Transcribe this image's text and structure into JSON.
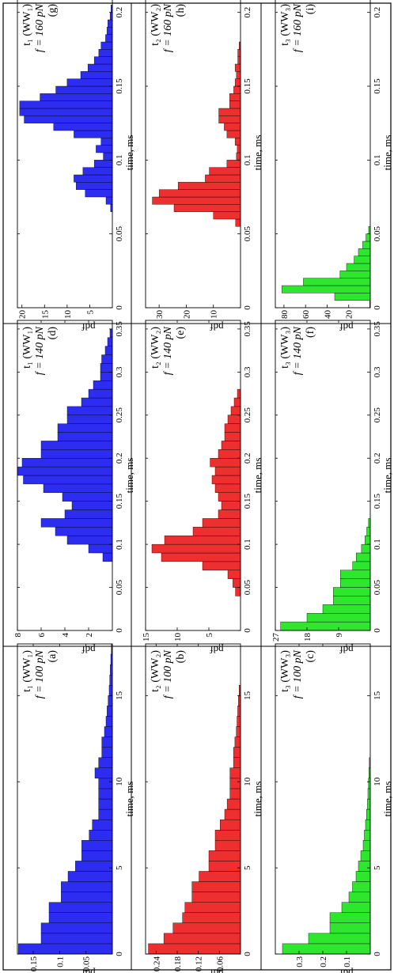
{
  "colors": {
    "WW1": "#2d2df2",
    "WW2": "#ee2f2f",
    "WW3": "#2fe62f",
    "frame": "#000000",
    "background": "#ffffff"
  },
  "chart_data": [
    {
      "type": "bar",
      "panel": "(a)",
      "title_line1": "t₁ (WW₁)",
      "title_line2": "f = 100 pN",
      "xlabel": "time, ms",
      "ylabel": "pdf",
      "xlim": [
        0,
        18
      ],
      "ylim": [
        0,
        0.18
      ],
      "xticks": [
        "0",
        "5",
        "10",
        "15"
      ],
      "yticks": [
        "0.05",
        "0.1",
        "0.15"
      ],
      "bin_width": 0.6,
      "x": [
        0.3,
        0.9,
        1.5,
        2.1,
        2.7,
        3.3,
        3.9,
        4.5,
        5.1,
        5.7,
        6.3,
        6.9,
        7.5,
        8.1,
        8.7,
        9.3,
        9.9,
        10.5,
        11.1,
        11.7,
        12.3,
        12.9,
        13.5,
        14.1,
        14.7,
        15.3,
        15.9,
        16.5,
        17.1,
        17.7
      ],
      "values": [
        0.178,
        0.135,
        0.135,
        0.12,
        0.12,
        0.097,
        0.097,
        0.084,
        0.07,
        0.058,
        0.058,
        0.044,
        0.038,
        0.026,
        0.026,
        0.026,
        0.026,
        0.033,
        0.026,
        0.02,
        0.02,
        0.015,
        0.012,
        0.01,
        0.008,
        0.006,
        0.005,
        0.004,
        0.003,
        0.002
      ]
    },
    {
      "type": "bar",
      "panel": "(b)",
      "title_line1": "t₂ (WW₂)",
      "title_line2": "f = 100 pN",
      "xlabel": "time, ms",
      "ylabel": "pdf",
      "xlim": [
        0,
        18
      ],
      "ylim": [
        0,
        0.27
      ],
      "xticks": [
        "0",
        "5",
        "10",
        "15"
      ],
      "yticks": [
        "0.06",
        "0.12",
        "0.18",
        "0.24"
      ],
      "bin_width": 0.6,
      "x": [
        0.3,
        0.9,
        1.5,
        2.1,
        2.7,
        3.3,
        3.9,
        4.5,
        5.1,
        5.7,
        6.3,
        6.9,
        7.5,
        8.1,
        8.7,
        9.3,
        9.9,
        10.5,
        11.1,
        11.7,
        12.3,
        12.9,
        13.5,
        14.1,
        14.7,
        15.3
      ],
      "values": [
        0.262,
        0.218,
        0.192,
        0.165,
        0.158,
        0.138,
        0.138,
        0.118,
        0.09,
        0.09,
        0.072,
        0.072,
        0.058,
        0.045,
        0.038,
        0.03,
        0.03,
        0.03,
        0.02,
        0.02,
        0.016,
        0.012,
        0.01,
        0.008,
        0.006,
        0.004
      ]
    },
    {
      "type": "bar",
      "panel": "(c)",
      "title_line1": "t₃ (WW₃)",
      "title_line2": "f = 100 pN",
      "xlabel": "time, ms",
      "ylabel": "pdf",
      "xlim": [
        0,
        18
      ],
      "ylim": [
        0,
        0.4
      ],
      "xticks": [
        "0",
        "5",
        "10",
        "15"
      ],
      "yticks": [
        "0.1",
        "0.2",
        "0.3"
      ],
      "bin_width": 0.6,
      "x": [
        0.3,
        0.9,
        1.5,
        2.1,
        2.7,
        3.3,
        3.9,
        4.5,
        5.1,
        5.7,
        6.3,
        6.9,
        7.5,
        8.1,
        8.7,
        9.3,
        9.9,
        10.5,
        11.1
      ],
      "values": [
        0.37,
        0.26,
        0.17,
        0.17,
        0.12,
        0.09,
        0.075,
        0.06,
        0.05,
        0.04,
        0.03,
        0.025,
        0.02,
        0.016,
        0.012,
        0.01,
        0.008,
        0.006,
        0.004
      ]
    },
    {
      "type": "bar",
      "panel": "(d)",
      "title_line1": "t₁ (WW₁)",
      "title_line2": "f = 140 pN",
      "xlabel": "time, ms",
      "ylabel": "pdf",
      "xlim": [
        0,
        0.36
      ],
      "ylim": [
        0,
        8
      ],
      "xticks": [
        "0",
        "0.05",
        "0.1",
        "0.15",
        "0.2",
        "0.25",
        "0.3",
        "0.35"
      ],
      "yticks": [
        "2",
        "4",
        "6",
        "8"
      ],
      "bin_width": 0.01,
      "x": [
        0.085,
        0.095,
        0.105,
        0.115,
        0.125,
        0.135,
        0.145,
        0.155,
        0.165,
        0.175,
        0.185,
        0.195,
        0.205,
        0.215,
        0.225,
        0.235,
        0.245,
        0.255,
        0.265,
        0.275,
        0.285,
        0.295,
        0.305,
        0.315,
        0.325,
        0.335,
        0.345
      ],
      "values": [
        0.8,
        2.0,
        3.8,
        4.8,
        6.0,
        4.0,
        3.4,
        4.2,
        5.8,
        7.5,
        8.0,
        7.6,
        6.0,
        6.0,
        4.6,
        4.6,
        3.8,
        3.8,
        2.6,
        2.0,
        1.6,
        1.0,
        1.0,
        0.9,
        0.6,
        0.4,
        0.2
      ]
    },
    {
      "type": "bar",
      "panel": "(e)",
      "title_line1": "t₂ (WW₂)",
      "title_line2": "f = 140 pN",
      "xlabel": "time, ms",
      "ylabel": "pdf",
      "xlim": [
        0,
        0.36
      ],
      "ylim": [
        0,
        15
      ],
      "xticks": [
        "0",
        "0.05",
        "0.1",
        "0.15",
        "0.2",
        "0.25",
        "0.3",
        "0.35"
      ],
      "yticks": [
        "5",
        "10",
        "15"
      ],
      "bin_width": 0.01,
      "x": [
        0.045,
        0.055,
        0.065,
        0.075,
        0.085,
        0.095,
        0.105,
        0.115,
        0.125,
        0.135,
        0.145,
        0.155,
        0.165,
        0.175,
        0.185,
        0.195,
        0.205,
        0.215,
        0.225,
        0.235,
        0.245,
        0.255,
        0.265,
        0.275
      ],
      "values": [
        0.8,
        1.2,
        2.0,
        6.0,
        12.5,
        14.0,
        12.0,
        7.5,
        6.0,
        3.5,
        3.0,
        3.5,
        4.0,
        4.5,
        4.0,
        4.8,
        3.5,
        3.0,
        2.5,
        2.5,
        2.0,
        1.5,
        1.0,
        0.5
      ]
    },
    {
      "type": "bar",
      "panel": "(f)",
      "title_line1": "t₃ (WW₃)",
      "title_line2": "f = 140 pN",
      "xlabel": "time, ms",
      "ylabel": "pdf",
      "xlim": [
        0,
        0.36
      ],
      "ylim": [
        0,
        27
      ],
      "xticks": [
        "0",
        "0.05",
        "0.1",
        "0.15",
        "0.2",
        "0.25",
        "0.3",
        "0.35"
      ],
      "yticks": [
        "9",
        "18",
        "27"
      ],
      "bin_width": 0.01,
      "x": [
        0.005,
        0.015,
        0.025,
        0.035,
        0.045,
        0.055,
        0.065,
        0.075,
        0.085,
        0.095,
        0.105,
        0.115,
        0.125
      ],
      "values": [
        25.5,
        18.0,
        13.5,
        10.5,
        10.5,
        8.5,
        8.5,
        5.0,
        4.0,
        2.5,
        1.5,
        1.0,
        0.5
      ]
    },
    {
      "type": "bar",
      "panel": "(g)",
      "title_line1": "t₁ (WW₁)",
      "title_line2": "f = 160 pN",
      "xlabel": "time, ms",
      "ylabel": "pdf",
      "xlim": [
        0,
        0.21
      ],
      "ylim": [
        0,
        21
      ],
      "xticks": [
        "0",
        "0.05",
        "0.1",
        "0.15",
        "0.2"
      ],
      "yticks": [
        "5",
        "10",
        "15",
        "20"
      ],
      "bin_width": 0.005,
      "x": [
        0.0675,
        0.0725,
        0.0775,
        0.0825,
        0.0875,
        0.0925,
        0.0975,
        0.1025,
        0.1075,
        0.1125,
        0.1175,
        0.1225,
        0.1275,
        0.1325,
        0.1375,
        0.1425,
        0.1475,
        0.1525,
        0.1575,
        0.1625,
        0.1675,
        0.1725,
        0.1775,
        0.1825,
        0.1875,
        0.1925,
        0.1975,
        0.2025
      ],
      "values": [
        0.4,
        1.4,
        6.0,
        8.0,
        8.5,
        6.5,
        4.0,
        2.0,
        3.6,
        2.5,
        8.5,
        13.0,
        19.5,
        20.5,
        20.5,
        16.0,
        12.5,
        10.0,
        7.0,
        5.4,
        4.0,
        3.0,
        2.5,
        1.5,
        1.2,
        1.0,
        0.5,
        0.3
      ]
    },
    {
      "type": "bar",
      "panel": "(h)",
      "title_line1": "t₂ (WW₂)",
      "title_line2": "f = 160 pN",
      "xlabel": "time, ms",
      "ylabel": "pdf",
      "xlim": [
        0,
        0.21
      ],
      "ylim": [
        0,
        35
      ],
      "xticks": [
        "0",
        "0.05",
        "0.1",
        "0.15",
        "0.2"
      ],
      "yticks": [
        "10",
        "20",
        "30"
      ],
      "bin_width": 0.005,
      "x": [
        0.0575,
        0.0625,
        0.0675,
        0.0725,
        0.0775,
        0.0825,
        0.0875,
        0.0925,
        0.0975,
        0.1025,
        0.1075,
        0.1125,
        0.1175,
        0.1225,
        0.1275,
        0.1325,
        0.1375,
        0.1425,
        0.1475,
        0.1525,
        0.1575,
        0.1625,
        0.1675,
        0.1725,
        0.1775
      ],
      "values": [
        1.8,
        10.0,
        24.5,
        32.5,
        30.0,
        23.0,
        13.0,
        11.5,
        5.0,
        1.5,
        1.2,
        2.0,
        5.0,
        6.0,
        8.0,
        8.0,
        4.0,
        4.0,
        2.5,
        2.0,
        1.5,
        2.0,
        1.0,
        1.0,
        0.5
      ]
    },
    {
      "type": "bar",
      "panel": "(i)",
      "title_line1": "t₃ (WW₃)",
      "title_line2": "f = 160 pN",
      "xlabel": "time, ms",
      "ylabel": "pdf",
      "xlim": [
        0,
        0.21
      ],
      "ylim": [
        0,
        88
      ],
      "xticks": [
        "0",
        "0.05",
        "0.1",
        "0.15",
        "0.2"
      ],
      "yticks": [
        "20",
        "40",
        "60",
        "80"
      ],
      "bin_width": 0.005,
      "x": [
        0.0025,
        0.0075,
        0.0125,
        0.0175,
        0.0225,
        0.0275,
        0.0325,
        0.0375,
        0.0425,
        0.0475,
        0.0525
      ],
      "values": [
        0.5,
        33.0,
        82.0,
        62.0,
        28.0,
        22.0,
        15.0,
        11.0,
        7.0,
        4.0,
        1.5
      ]
    }
  ]
}
